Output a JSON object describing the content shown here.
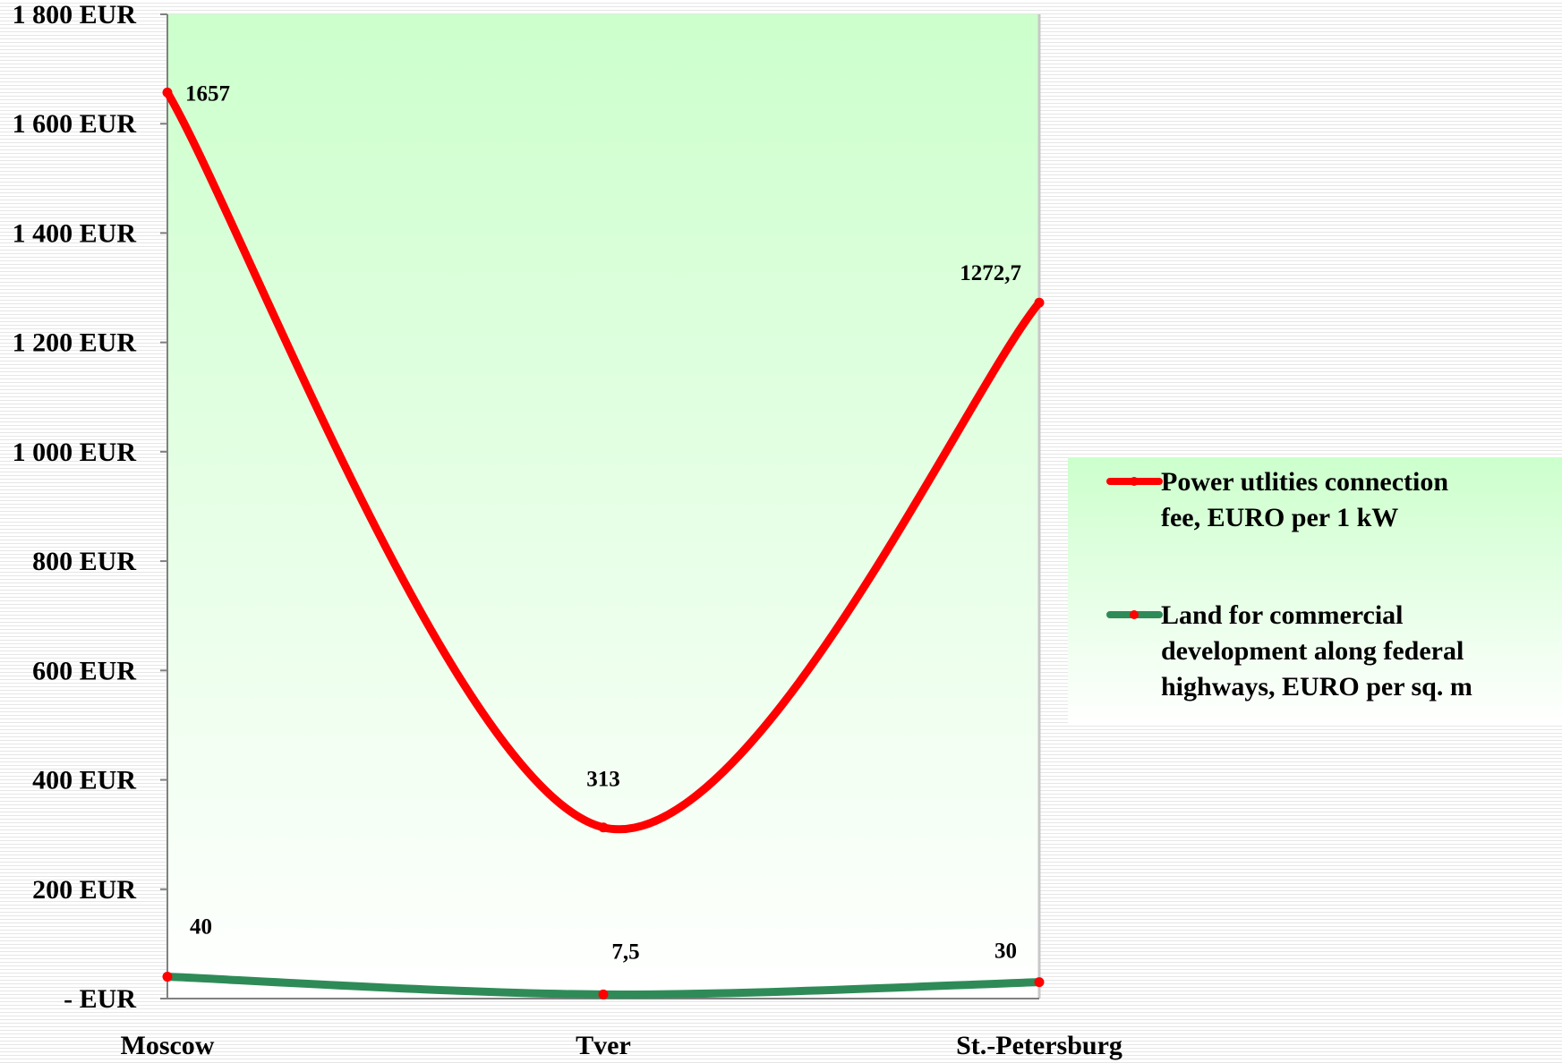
{
  "chart_data": {
    "type": "line",
    "title": "",
    "xlabel": "",
    "ylabel": "",
    "categories": [
      "Moscow",
      "Tver",
      "St.-Petersburg"
    ],
    "ylim": [
      0,
      1800
    ],
    "yticks": [
      0,
      200,
      400,
      600,
      800,
      1000,
      1200,
      1400,
      1600,
      1800
    ],
    "ytick_labels": [
      "- EUR",
      "200 EUR",
      "400 EUR",
      "600 EUR",
      "800 EUR",
      "1 000 EUR",
      "1 200 EUR",
      "1 400 EUR",
      "1 600 EUR",
      "1 800 EUR"
    ],
    "series": [
      {
        "name_lines": [
          "Power utlities connection",
          "fee, EURO per 1 kW"
        ],
        "values": [
          1657,
          313,
          1272.7
        ],
        "labels": [
          "1657",
          "313",
          "1272,7"
        ],
        "color": "#ff0000",
        "marker_color": "#ff0000",
        "smooth": true
      },
      {
        "name_lines": [
          "Land for commercial",
          "development along federal",
          "highways, EURO per sq. m"
        ],
        "values": [
          40,
          7.5,
          30
        ],
        "labels": [
          "40",
          "7,5",
          "30"
        ],
        "color": "#2e8b57",
        "marker_color": "#ff0000",
        "smooth": true
      }
    ],
    "legend_position": "right",
    "plot_background": [
      "#ccffcc",
      "#ffffff"
    ],
    "grid": false
  }
}
